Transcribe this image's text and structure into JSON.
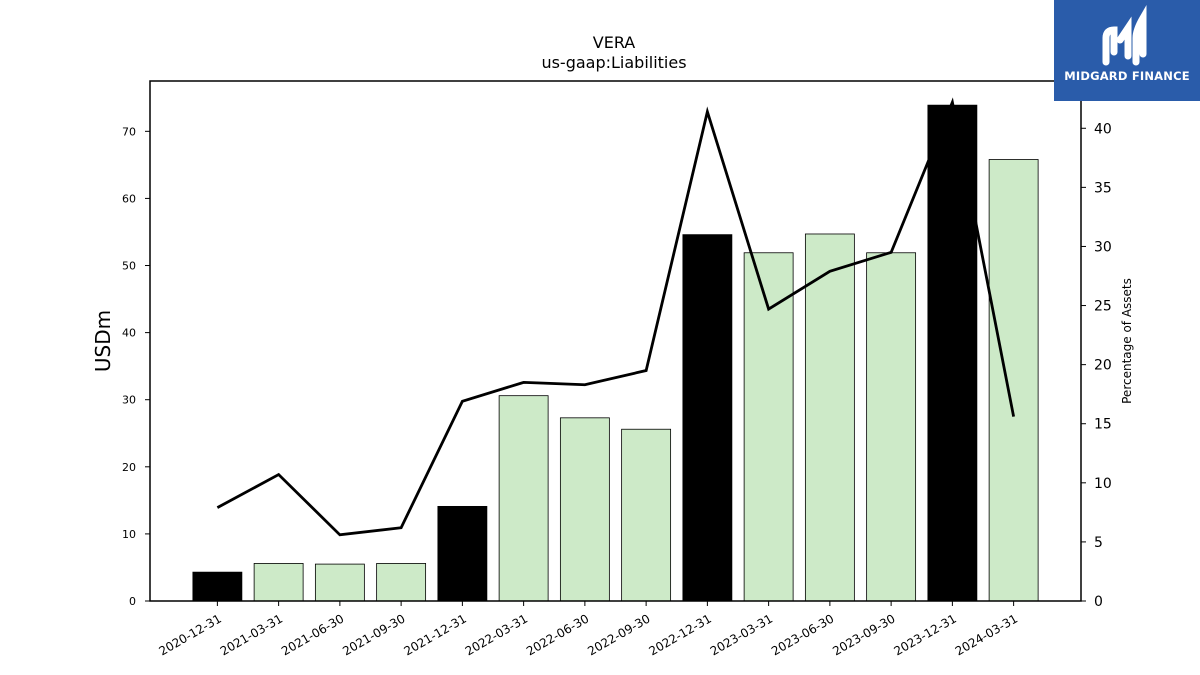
{
  "chart_data": {
    "type": "bar",
    "title": "VERA",
    "subtitle": "us-gaap:Liabilities",
    "ylabel": "USDm",
    "y2label": "Percentage of Assets",
    "categories": [
      "2020-12-31",
      "2021-03-31",
      "2021-06-30",
      "2021-09-30",
      "2021-12-31",
      "2022-03-31",
      "2022-06-30",
      "2022-09-30",
      "2022-12-31",
      "2023-03-31",
      "2023-06-30",
      "2023-09-30",
      "2023-12-31",
      "2024-03-31"
    ],
    "values": [
      4.3,
      5.6,
      5.5,
      5.6,
      14.1,
      30.6,
      27.3,
      25.6,
      54.6,
      51.9,
      54.7,
      51.9,
      73.9,
      65.8
    ],
    "bar_colors": [
      "#000000",
      "#cdeac8",
      "#cdeac8",
      "#cdeac8",
      "#000000",
      "#cdeac8",
      "#cdeac8",
      "#cdeac8",
      "#000000",
      "#cdeac8",
      "#cdeac8",
      "#cdeac8",
      "#000000",
      "#cdeac8"
    ],
    "line_values": [
      7.9,
      10.7,
      5.6,
      6.2,
      16.9,
      18.5,
      18.3,
      19.5,
      41.4,
      24.7,
      27.9,
      29.5,
      42.2,
      15.6
    ],
    "ylim": [
      0,
      77.5
    ],
    "y2lim": [
      0,
      44
    ],
    "yticks": [
      0,
      10,
      20,
      30,
      40,
      50,
      60,
      70
    ],
    "y2ticks": [
      0,
      5,
      10,
      15,
      20,
      25,
      30,
      35,
      40
    ],
    "grid": false
  },
  "logo": {
    "text": "MIDGARD FINANCE",
    "bg_color": "#2a5caa"
  }
}
